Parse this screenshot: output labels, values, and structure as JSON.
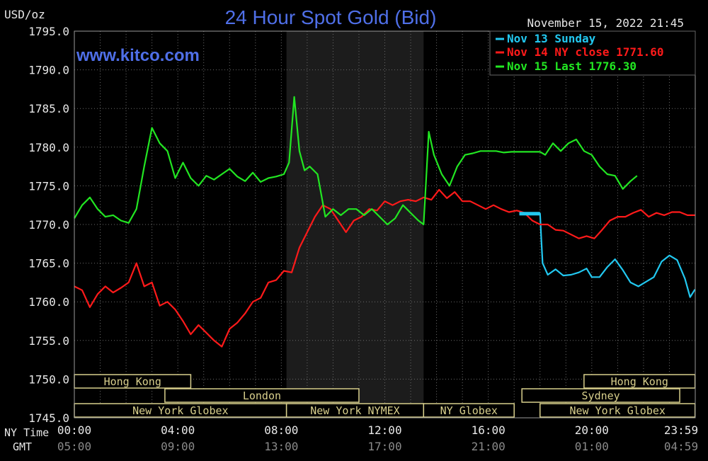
{
  "header": {
    "unit": "USD/oz",
    "title": "24 Hour Spot Gold (Bid)",
    "site": "www.kitco.com",
    "timestamp": "November 15, 2022 21:45"
  },
  "legend": [
    {
      "text": "Nov 13 Sunday",
      "color": "#22c8f0"
    },
    {
      "text": "Nov 14 NY close 1771.60",
      "color": "#ff1a1a"
    },
    {
      "text": "Nov 15 Last 1776.30",
      "color": "#22e622"
    }
  ],
  "time_rows": {
    "ny_label": "NY Time",
    "gmt_label": "GMT",
    "ny_ticks": [
      "00:00",
      "04:00",
      "08:00",
      "12:00",
      "16:00",
      "20:00",
      "23:59"
    ],
    "gmt_ticks": [
      "05:00",
      "09:00",
      "13:00",
      "17:00",
      "21:00",
      "01:00",
      "04:59"
    ]
  },
  "sessions": [
    {
      "label": "Hong Kong",
      "row": 0,
      "start": 0,
      "end": 4.5
    },
    {
      "label": "Hong Kong",
      "row": 0,
      "start": 19.7,
      "end": 23.99
    },
    {
      "label": "London",
      "row": 1,
      "start": 3.5,
      "end": 11.0
    },
    {
      "label": "Sydney",
      "row": 1,
      "start": 17.3,
      "end": 23.4
    },
    {
      "label": "New York Globex",
      "row": 2,
      "start": 0,
      "end": 8.2
    },
    {
      "label": "New York NYMEX",
      "row": 2,
      "start": 8.2,
      "end": 13.5
    },
    {
      "label": "NY Globex",
      "row": 2,
      "start": 13.5,
      "end": 17.0
    },
    {
      "label": "New York Globex",
      "row": 2,
      "start": 18.0,
      "end": 23.99
    }
  ],
  "chart_data": {
    "type": "line",
    "ylim": [
      1745,
      1795
    ],
    "yticks": [
      "1745.0",
      "1750.0",
      "1755.0",
      "1760.0",
      "1765.0",
      "1770.0",
      "1775.0",
      "1780.0",
      "1785.0",
      "1790.0",
      "1795.0"
    ],
    "xlim": [
      0,
      24
    ],
    "xunit": "NY time (hours)",
    "shaded": [
      8.2,
      13.5
    ],
    "series": [
      {
        "name": "Nov 13 Sunday",
        "color": "#22c8f0",
        "x": [
          17.2,
          18.0,
          18.05,
          18.1,
          18.3,
          18.6,
          18.9,
          19.2,
          19.5,
          19.8,
          20.0,
          20.3,
          20.6,
          20.9,
          21.2,
          21.5,
          21.8,
          22.1,
          22.4,
          22.7,
          23.0,
          23.3,
          23.6,
          23.8,
          23.99
        ],
        "y": [
          1771.4,
          1771.4,
          1768,
          1765,
          1763.5,
          1764.2,
          1763.4,
          1763.5,
          1763.8,
          1764.3,
          1763.2,
          1763.2,
          1764.5,
          1765.5,
          1764.1,
          1762.5,
          1762.0,
          1762.6,
          1763.2,
          1765.2,
          1766,
          1765.4,
          1763,
          1760.6,
          1761.6
        ]
      },
      {
        "name": "Nov 14 NY close 1771.60",
        "color": "#ff1a1a",
        "x": [
          0,
          0.3,
          0.6,
          0.9,
          1.2,
          1.5,
          1.8,
          2.1,
          2.4,
          2.7,
          3.0,
          3.3,
          3.6,
          3.9,
          4.2,
          4.5,
          4.8,
          5.1,
          5.4,
          5.7,
          6.0,
          6.3,
          6.6,
          6.9,
          7.2,
          7.5,
          7.8,
          8.1,
          8.4,
          8.7,
          9.0,
          9.3,
          9.6,
          9.9,
          10.2,
          10.5,
          10.8,
          11.1,
          11.4,
          11.7,
          12.0,
          12.3,
          12.6,
          12.9,
          13.2,
          13.5,
          13.8,
          14.1,
          14.4,
          14.7,
          15.0,
          15.3,
          15.6,
          15.9,
          16.2,
          16.5,
          16.8,
          17.1,
          17.4,
          17.7,
          18.0,
          18.3,
          18.6,
          18.9,
          19.2,
          19.5,
          19.8,
          20.1,
          20.4,
          20.7,
          21.0,
          21.3,
          21.6,
          21.9,
          22.2,
          22.5,
          22.8,
          23.1,
          23.4,
          23.7,
          23.99
        ],
        "y": [
          1762,
          1761.5,
          1759.3,
          1761,
          1762,
          1761.2,
          1761.8,
          1762.5,
          1765,
          1762,
          1762.5,
          1759.5,
          1760,
          1759,
          1757.5,
          1755.8,
          1757,
          1756,
          1755,
          1754.2,
          1756.5,
          1757.3,
          1758.5,
          1760,
          1760.5,
          1762.5,
          1762.8,
          1764,
          1763.8,
          1767,
          1769,
          1771,
          1772.5,
          1772,
          1770.5,
          1769,
          1770.5,
          1771,
          1772,
          1771.8,
          1773,
          1772.5,
          1773,
          1773.2,
          1773,
          1773.5,
          1773.2,
          1774.5,
          1773.4,
          1774.2,
          1773,
          1773,
          1772.5,
          1772,
          1772.5,
          1772,
          1771.6,
          1771.8,
          1771.5,
          1770.5,
          1770,
          1770,
          1769.3,
          1769.2,
          1768.7,
          1768.2,
          1768.5,
          1768.2,
          1769.3,
          1770.5,
          1771,
          1771,
          1771.5,
          1771.9,
          1771,
          1771.5,
          1771.2,
          1771.6,
          1771.6,
          1771.2,
          1771.2
        ]
      },
      {
        "name": "Nov 15 Last 1776.30",
        "color": "#22e622",
        "x": [
          0,
          0.3,
          0.6,
          0.9,
          1.2,
          1.5,
          1.8,
          2.1,
          2.4,
          2.7,
          3.0,
          3.3,
          3.6,
          3.9,
          4.2,
          4.5,
          4.8,
          5.1,
          5.4,
          5.7,
          6.0,
          6.3,
          6.6,
          6.9,
          7.2,
          7.5,
          7.8,
          8.1,
          8.3,
          8.5,
          8.7,
          8.9,
          9.1,
          9.4,
          9.7,
          10.0,
          10.3,
          10.6,
          10.9,
          11.2,
          11.5,
          11.8,
          12.1,
          12.4,
          12.7,
          13.0,
          13.3,
          13.5,
          13.6,
          13.7,
          13.9,
          14.2,
          14.5,
          14.8,
          15.1,
          15.4,
          15.7,
          16.0,
          16.3,
          16.6,
          16.9,
          17.2,
          17.5,
          17.8,
          18.0,
          18.2,
          18.5,
          18.8,
          19.1,
          19.4,
          19.7,
          20.0,
          20.3,
          20.6,
          20.9,
          21.2,
          21.5,
          21.75
        ],
        "y": [
          1770.8,
          1772.5,
          1773.5,
          1772,
          1771,
          1771.2,
          1770.5,
          1770.2,
          1772,
          1777.5,
          1782.5,
          1780.5,
          1779.5,
          1776,
          1778,
          1776,
          1775,
          1776.3,
          1775.8,
          1776.5,
          1777.2,
          1776.2,
          1775.6,
          1776.7,
          1775.5,
          1776,
          1776.2,
          1776.5,
          1778,
          1786.5,
          1779.5,
          1777,
          1777.5,
          1776.5,
          1771,
          1772,
          1771.2,
          1772,
          1772,
          1771.2,
          1772,
          1771,
          1770,
          1770.8,
          1772.5,
          1771.5,
          1770.5,
          1770,
          1776,
          1782,
          1779,
          1776.5,
          1775,
          1777.5,
          1779,
          1779.2,
          1779.5,
          1779.5,
          1779.5,
          1779.3,
          1779.4,
          1779.4,
          1779.4,
          1779.4,
          1779.4,
          1779,
          1780.5,
          1779.5,
          1780.5,
          1781,
          1779.5,
          1779,
          1777.5,
          1776.5,
          1776.3,
          1774.6,
          1775.6,
          1776.3
        ]
      }
    ]
  }
}
